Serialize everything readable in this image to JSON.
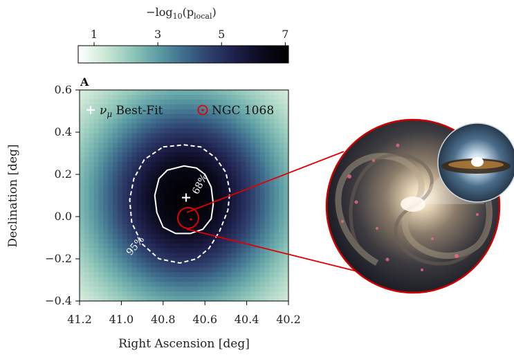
{
  "chart_data": {
    "type": "heatmap",
    "panel_label": "A",
    "xlabel": "Right Ascension [deg]",
    "ylabel": "Declination [deg]",
    "xlim": [
      41.2,
      40.2
    ],
    "ylim": [
      -0.4,
      0.6
    ],
    "xticks": [
      41.2,
      41.0,
      40.8,
      40.6,
      40.4,
      40.2
    ],
    "yticks": [
      -0.4,
      -0.2,
      0.0,
      0.2,
      0.4,
      0.6
    ],
    "xtick_labels": [
      "41.2",
      "41.0",
      "40.8",
      "40.6",
      "40.4",
      "40.2"
    ],
    "ytick_labels": [
      "−0.4",
      "−0.2",
      "0.0",
      "0.2",
      "0.4",
      "0.6"
    ],
    "colorbar": {
      "label": "−log₁₀(p_local)",
      "label_main": "−log",
      "label_sub": "10",
      "label_arg": "(p",
      "label_arg_sub": "local",
      "label_close": ")",
      "min": 0.5,
      "max": 7.1,
      "ticks": [
        1,
        3,
        5,
        7
      ],
      "tick_labels": [
        "1",
        "3",
        "5",
        "7"
      ],
      "colors": [
        "#ffffff",
        "#cfe8d6",
        "#93c8bb",
        "#5f9fa5",
        "#3f6e8d",
        "#2e3f6c",
        "#1d1f49",
        "#0a0a1d",
        "#000000"
      ]
    },
    "best_fit": {
      "ra": 40.69,
      "dec": 0.09,
      "peak_value": 7.0
    },
    "source": {
      "name": "NGC 1068",
      "ra": 40.667,
      "dec": -0.013
    },
    "contours": [
      {
        "label": "68%",
        "style": "solid",
        "points": [
          [
            40.78,
            0.22
          ],
          [
            40.7,
            0.24
          ],
          [
            40.64,
            0.23
          ],
          [
            40.6,
            0.2
          ],
          [
            40.57,
            0.14
          ],
          [
            40.56,
            0.06
          ],
          [
            40.57,
            -0.01
          ],
          [
            40.61,
            -0.06
          ],
          [
            40.67,
            -0.08
          ],
          [
            40.74,
            -0.08
          ],
          [
            40.8,
            -0.05
          ],
          [
            40.83,
            0.02
          ],
          [
            40.84,
            0.1
          ],
          [
            40.82,
            0.18
          ]
        ]
      },
      {
        "label": "95%",
        "style": "dashed",
        "points": [
          [
            40.8,
            0.33
          ],
          [
            40.7,
            0.34
          ],
          [
            40.62,
            0.33
          ],
          [
            40.55,
            0.28
          ],
          [
            40.5,
            0.21
          ],
          [
            40.48,
            0.12
          ],
          [
            40.49,
            0.03
          ],
          [
            40.53,
            -0.07
          ],
          [
            40.58,
            -0.15
          ],
          [
            40.64,
            -0.2
          ],
          [
            40.72,
            -0.22
          ],
          [
            40.82,
            -0.2
          ],
          [
            40.9,
            -0.13
          ],
          [
            40.95,
            -0.03
          ],
          [
            40.96,
            0.08
          ],
          [
            40.94,
            0.18
          ],
          [
            40.89,
            0.27
          ]
        ]
      }
    ],
    "legend": [
      {
        "marker": "+",
        "label": "ν_μ Best-Fit",
        "label_main": "ν",
        "label_sub": "μ",
        "label_rest": " Best-Fit",
        "color": "#ffffff"
      },
      {
        "marker": "⊙",
        "label": "NGC 1068",
        "color": "#e00000"
      }
    ],
    "grid": false,
    "legend_position": "top"
  },
  "inset": {
    "description_color_border": "#d00000",
    "zoom_line_color": "#e00000"
  }
}
